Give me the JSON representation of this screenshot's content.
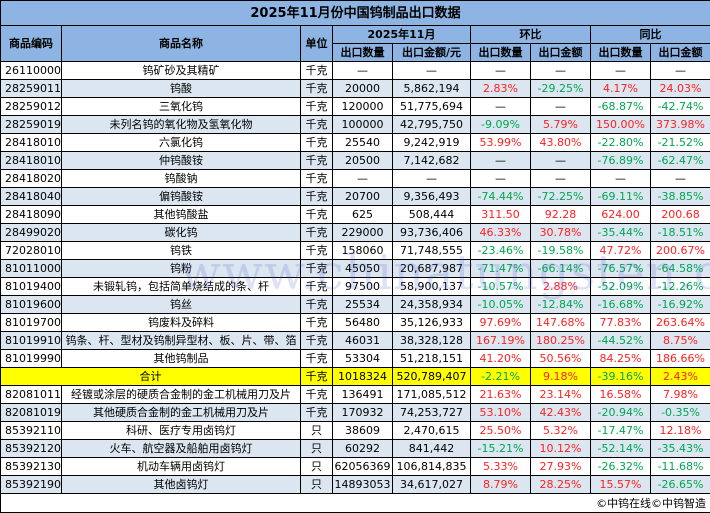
{
  "title": "2025年11月份中国钨制品出口数据",
  "headers": {
    "code": "商品编码",
    "name": "商品名称",
    "unit": "单位",
    "period": "2025年11月",
    "mom": "环比",
    "yoy": "同比",
    "qty": "出口数量",
    "amount_yuan": "出口金额/元",
    "amount": "出口金额"
  },
  "rows": [
    {
      "code": "26110000",
      "name": "钨矿砂及其精矿",
      "unit": "千克",
      "qty": "—",
      "amount": "—",
      "mom_qty": "—",
      "mom_amt": "—",
      "yoy_qty": "—",
      "yoy_amt": "—"
    },
    {
      "code": "28259011",
      "name": "钨酸",
      "unit": "千克",
      "qty": "20000",
      "amount": "5,862,194",
      "mom_qty": "2.83%",
      "mom_amt": "-29.25%",
      "yoy_qty": "4.17%",
      "yoy_amt": "24.03%"
    },
    {
      "code": "28259012",
      "name": "三氧化钨",
      "unit": "千克",
      "qty": "120000",
      "amount": "51,775,694",
      "mom_qty": "—",
      "mom_amt": "—",
      "yoy_qty": "-68.87%",
      "yoy_amt": "-42.74%"
    },
    {
      "code": "28259019",
      "name": "未列名钨的氧化物及氢氧化物",
      "unit": "千克",
      "qty": "100000",
      "amount": "42,795,750",
      "mom_qty": "-9.09%",
      "mom_amt": "5.79%",
      "yoy_qty": "150.00%",
      "yoy_amt": "373.98%"
    },
    {
      "code": "28418010",
      "name": "六氯化钨",
      "unit": "千克",
      "qty": "25540",
      "amount": "9,242,919",
      "mom_qty": "53.99%",
      "mom_amt": "43.80%",
      "yoy_qty": "-22.80%",
      "yoy_amt": "-21.52%"
    },
    {
      "code": "28418010",
      "name": "仲钨酸铵",
      "unit": "千克",
      "qty": "20500",
      "amount": "7,142,682",
      "mom_qty": "—",
      "mom_amt": "—",
      "yoy_qty": "-76.89%",
      "yoy_amt": "-62.47%"
    },
    {
      "code": "28418020",
      "name": "钨酸钠",
      "unit": "千克",
      "qty": "—",
      "amount": "—",
      "mom_qty": "—",
      "mom_amt": "—",
      "yoy_qty": "—",
      "yoy_amt": "—"
    },
    {
      "code": "28418040",
      "name": "偏钨酸铵",
      "unit": "千克",
      "qty": "20700",
      "amount": "9,356,493",
      "mom_qty": "-74.44%",
      "mom_amt": "-72.25%",
      "yoy_qty": "-69.11%",
      "yoy_amt": "-38.85%"
    },
    {
      "code": "28418090",
      "name": "其他钨酸盐",
      "unit": "千克",
      "qty": "625",
      "amount": "508,444",
      "mom_qty": "311.50",
      "mom_amt": "92.28",
      "yoy_qty": "624.00",
      "yoy_amt": "200.68"
    },
    {
      "code": "28499020",
      "name": "碳化钨",
      "unit": "千克",
      "qty": "229000",
      "amount": "93,736,406",
      "mom_qty": "46.33%",
      "mom_amt": "30.78%",
      "yoy_qty": "-35.44%",
      "yoy_amt": "-18.51%"
    },
    {
      "code": "72028010",
      "name": "钨铁",
      "unit": "千克",
      "qty": "158060",
      "amount": "71,748,555",
      "mom_qty": "-23.46%",
      "mom_amt": "-19.58%",
      "yoy_qty": "47.72%",
      "yoy_amt": "200.67%"
    },
    {
      "code": "81011000",
      "name": "钨粉",
      "unit": "千克",
      "qty": "45050",
      "amount": "20,687,987",
      "mom_qty": "-71.47%",
      "mom_amt": "-66.14%",
      "yoy_qty": "-76.57%",
      "yoy_amt": "-64.58%"
    },
    {
      "code": "81019400",
      "name": "未锻轧钨，包括简单烧结成的条、杆",
      "unit": "千克",
      "qty": "97500",
      "amount": "58,900,137",
      "mom_qty": "-10.57%",
      "mom_amt": "2.88%",
      "yoy_qty": "-52.09%",
      "yoy_amt": "-12.26%"
    },
    {
      "code": "81019600",
      "name": "钨丝",
      "unit": "千克",
      "qty": "25534",
      "amount": "24,358,934",
      "mom_qty": "-10.05%",
      "mom_amt": "-12.84%",
      "yoy_qty": "-16.68%",
      "yoy_amt": "-16.92%"
    },
    {
      "code": "81019700",
      "name": "钨废料及碎料",
      "unit": "千克",
      "qty": "56480",
      "amount": "35,126,933",
      "mom_qty": "97.69%",
      "mom_amt": "147.68%",
      "yoy_qty": "77.83%",
      "yoy_amt": "263.64%"
    },
    {
      "code": "81019910",
      "name": "钨条、杆、型材及钨制异型材、板、片、带、箔",
      "unit": "千克",
      "qty": "46031",
      "amount": "38,328,128",
      "mom_qty": "167.19%",
      "mom_amt": "180.25%",
      "yoy_qty": "-44.52%",
      "yoy_amt": "8.75%"
    },
    {
      "code": "81019990",
      "name": "其他钨制品",
      "unit": "千克",
      "qty": "53304",
      "amount": "51,218,151",
      "mom_qty": "41.20%",
      "mom_amt": "50.56%",
      "yoy_qty": "84.25%",
      "yoy_amt": "186.66%"
    },
    {
      "code": "",
      "name": "合计",
      "unit": "千克",
      "qty": "1018324",
      "amount": "520,789,407",
      "mom_qty": "-2.21%",
      "mom_amt": "9.18%",
      "yoy_qty": "-39.16%",
      "yoy_amt": "2.43%",
      "total": true
    },
    {
      "code": "82081011",
      "name": "经镀或涂层的硬质合金制的金工机械用刀及片",
      "unit": "千克",
      "qty": "136491",
      "amount": "171,085,512",
      "mom_qty": "21.63%",
      "mom_amt": "23.14%",
      "yoy_qty": "16.58%",
      "yoy_amt": "7.98%"
    },
    {
      "code": "82081019",
      "name": "其他硬质合金制的金工机械用刀及片",
      "unit": "千克",
      "qty": "170932",
      "amount": "74,253,727",
      "mom_qty": "53.10%",
      "mom_amt": "42.43%",
      "yoy_qty": "-20.94%",
      "yoy_amt": "-0.35%"
    },
    {
      "code": "85392110",
      "name": "科研、医疗专用卤钨灯",
      "unit": "只",
      "qty": "38609",
      "amount": "2,470,615",
      "mom_qty": "25.50%",
      "mom_amt": "5.32%",
      "yoy_qty": "-17.47%",
      "yoy_amt": "12.18%"
    },
    {
      "code": "85392120",
      "name": "火车、航空器及船舶用卤钨灯",
      "unit": "只",
      "qty": "60292",
      "amount": "841,442",
      "mom_qty": "-15.21%",
      "mom_amt": "10.12%",
      "yoy_qty": "-52.14%",
      "yoy_amt": "-35.43%"
    },
    {
      "code": "85392130",
      "name": "机动车辆用卤钨灯",
      "unit": "只",
      "qty": "62056369",
      "amount": "106,814,835",
      "mom_qty": "5.33%",
      "mom_amt": "27.93%",
      "yoy_qty": "-26.32%",
      "yoy_amt": "-11.68%"
    },
    {
      "code": "85392190",
      "name": "其他卤钨灯",
      "unit": "只",
      "qty": "14893053",
      "amount": "34,617,027",
      "mom_qty": "8.79%",
      "mom_amt": "28.25%",
      "yoy_qty": "15.57%",
      "yoy_amt": "-26.65%"
    }
  ],
  "footer": "©中钨在线©中钨智造",
  "watermark": "www.chinatungsten.com",
  "colors": {
    "header_bg": "#8DB4E2",
    "alt_row_bg": "#DCE6F1",
    "total_bg": "#FFFF00",
    "positive": "#FF2020",
    "negative": "#00A550"
  }
}
